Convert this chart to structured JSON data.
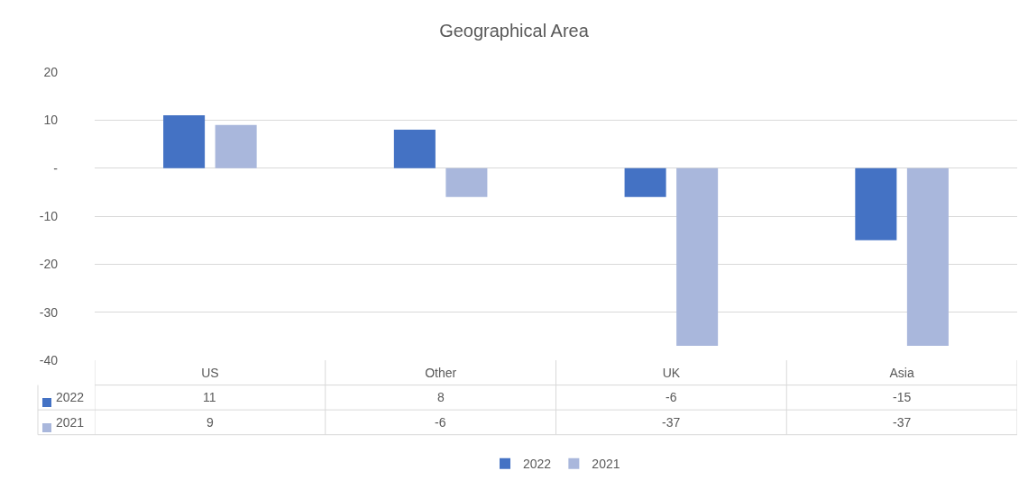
{
  "chart_data": {
    "type": "bar",
    "title": "Geographical Area",
    "categories": [
      "US",
      "Other",
      "UK",
      "Asia"
    ],
    "series": [
      {
        "name": "2022",
        "color": "#4472c4",
        "values": [
          11,
          8,
          -6,
          -15
        ]
      },
      {
        "name": "2021",
        "color": "#a9b7dc",
        "values": [
          9,
          -6,
          -37,
          -37
        ]
      }
    ],
    "ylim": [
      -40,
      20
    ],
    "yticks": [
      20,
      10,
      {
        "value": 0,
        "label": "-"
      },
      -10,
      -20,
      -30,
      -40
    ],
    "grid": "y",
    "legend": "bottom",
    "data_labels": true
  }
}
